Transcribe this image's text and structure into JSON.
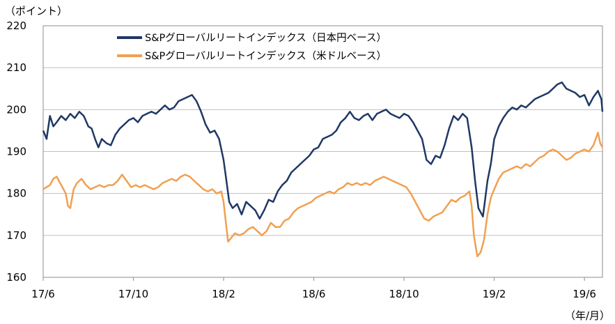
{
  "chart_data": {
    "type": "line",
    "y_unit_label": "（ポイント）",
    "x_unit_label": "（年/月）",
    "ylim": [
      160,
      220
    ],
    "y_ticks": [
      160,
      170,
      180,
      190,
      200,
      210,
      220
    ],
    "x_range": [
      0,
      24.8
    ],
    "x_ticks": [
      {
        "x": 0,
        "label": "17/6"
      },
      {
        "x": 4,
        "label": "17/10"
      },
      {
        "x": 8,
        "label": "18/2"
      },
      {
        "x": 12,
        "label": "18/6"
      },
      {
        "x": 16,
        "label": "18/10"
      },
      {
        "x": 20,
        "label": "19/2"
      },
      {
        "x": 24,
        "label": "19/6"
      }
    ],
    "grid": true,
    "legend_position": "top-center",
    "series": [
      {
        "name": "S&Pグローバルリートインデックス（日本円ベース）",
        "color": "#1f3864",
        "points": [
          [
            0,
            195
          ],
          [
            0.15,
            193
          ],
          [
            0.3,
            198.5
          ],
          [
            0.45,
            196
          ],
          [
            0.6,
            197
          ],
          [
            0.8,
            198.5
          ],
          [
            1.0,
            197.5
          ],
          [
            1.2,
            199
          ],
          [
            1.4,
            198
          ],
          [
            1.6,
            199.5
          ],
          [
            1.8,
            198.5
          ],
          [
            2.0,
            196
          ],
          [
            2.15,
            195.5
          ],
          [
            2.3,
            193
          ],
          [
            2.45,
            191
          ],
          [
            2.6,
            193
          ],
          [
            2.8,
            192
          ],
          [
            3.0,
            191.5
          ],
          [
            3.2,
            194
          ],
          [
            3.4,
            195.5
          ],
          [
            3.6,
            196.5
          ],
          [
            3.8,
            197.5
          ],
          [
            4.0,
            198
          ],
          [
            4.2,
            197
          ],
          [
            4.4,
            198.5
          ],
          [
            4.6,
            199
          ],
          [
            4.8,
            199.5
          ],
          [
            5.0,
            199
          ],
          [
            5.2,
            200
          ],
          [
            5.4,
            201
          ],
          [
            5.6,
            200
          ],
          [
            5.8,
            200.5
          ],
          [
            6.0,
            202
          ],
          [
            6.2,
            202.5
          ],
          [
            6.4,
            203
          ],
          [
            6.6,
            203.5
          ],
          [
            6.8,
            202
          ],
          [
            7.0,
            199.5
          ],
          [
            7.2,
            196.5
          ],
          [
            7.4,
            194.5
          ],
          [
            7.6,
            195
          ],
          [
            7.8,
            193
          ],
          [
            8.0,
            188
          ],
          [
            8.1,
            184
          ],
          [
            8.25,
            178
          ],
          [
            8.4,
            176.5
          ],
          [
            8.6,
            177.5
          ],
          [
            8.8,
            175
          ],
          [
            9.0,
            178
          ],
          [
            9.2,
            177
          ],
          [
            9.4,
            176
          ],
          [
            9.6,
            174
          ],
          [
            9.8,
            176
          ],
          [
            10.0,
            178.5
          ],
          [
            10.2,
            178
          ],
          [
            10.4,
            180.5
          ],
          [
            10.6,
            182
          ],
          [
            10.8,
            183
          ],
          [
            11.0,
            185
          ],
          [
            11.2,
            186
          ],
          [
            11.4,
            187
          ],
          [
            11.6,
            188
          ],
          [
            11.8,
            189
          ],
          [
            12.0,
            190.5
          ],
          [
            12.2,
            191
          ],
          [
            12.4,
            193
          ],
          [
            12.6,
            193.5
          ],
          [
            12.8,
            194
          ],
          [
            13.0,
            195
          ],
          [
            13.2,
            197
          ],
          [
            13.4,
            198
          ],
          [
            13.6,
            199.5
          ],
          [
            13.8,
            198
          ],
          [
            14.0,
            197.5
          ],
          [
            14.2,
            198.5
          ],
          [
            14.4,
            199
          ],
          [
            14.6,
            197.5
          ],
          [
            14.8,
            199
          ],
          [
            15.0,
            199.5
          ],
          [
            15.2,
            200
          ],
          [
            15.4,
            199
          ],
          [
            15.6,
            198.5
          ],
          [
            15.8,
            198
          ],
          [
            16.0,
            199
          ],
          [
            16.2,
            198.5
          ],
          [
            16.4,
            197
          ],
          [
            16.6,
            195
          ],
          [
            16.8,
            193
          ],
          [
            17.0,
            188
          ],
          [
            17.2,
            187
          ],
          [
            17.4,
            189
          ],
          [
            17.6,
            188.5
          ],
          [
            17.8,
            191.5
          ],
          [
            18.0,
            195.5
          ],
          [
            18.2,
            198.5
          ],
          [
            18.4,
            197.5
          ],
          [
            18.6,
            199
          ],
          [
            18.8,
            198
          ],
          [
            19.0,
            191
          ],
          [
            19.15,
            183
          ],
          [
            19.3,
            176.5
          ],
          [
            19.5,
            174.5
          ],
          [
            19.7,
            183
          ],
          [
            19.85,
            187
          ],
          [
            20.0,
            193
          ],
          [
            20.2,
            196
          ],
          [
            20.4,
            198
          ],
          [
            20.6,
            199.5
          ],
          [
            20.8,
            200.5
          ],
          [
            21.0,
            200
          ],
          [
            21.2,
            201
          ],
          [
            21.4,
            200.5
          ],
          [
            21.6,
            201.5
          ],
          [
            21.8,
            202.5
          ],
          [
            22.0,
            203
          ],
          [
            22.2,
            203.5
          ],
          [
            22.4,
            204
          ],
          [
            22.6,
            205
          ],
          [
            22.8,
            206
          ],
          [
            23.0,
            206.5
          ],
          [
            23.2,
            205
          ],
          [
            23.4,
            204.5
          ],
          [
            23.6,
            204
          ],
          [
            23.8,
            203
          ],
          [
            24.0,
            203.5
          ],
          [
            24.2,
            201
          ],
          [
            24.4,
            203
          ],
          [
            24.6,
            204.5
          ],
          [
            24.75,
            202.5
          ],
          [
            24.8,
            199.5
          ]
        ]
      },
      {
        "name": "S&Pグローバルリートインデックス（米ドルベース）",
        "color": "#f0a050",
        "points": [
          [
            0,
            181
          ],
          [
            0.15,
            181.5
          ],
          [
            0.3,
            182
          ],
          [
            0.45,
            183.5
          ],
          [
            0.6,
            184
          ],
          [
            0.8,
            182
          ],
          [
            1.0,
            180
          ],
          [
            1.1,
            177
          ],
          [
            1.2,
            176.5
          ],
          [
            1.35,
            181
          ],
          [
            1.5,
            182.5
          ],
          [
            1.7,
            183.5
          ],
          [
            1.9,
            182
          ],
          [
            2.1,
            181
          ],
          [
            2.3,
            181.5
          ],
          [
            2.5,
            182
          ],
          [
            2.7,
            181.5
          ],
          [
            2.9,
            182
          ],
          [
            3.1,
            182
          ],
          [
            3.3,
            183
          ],
          [
            3.5,
            184.5
          ],
          [
            3.7,
            183
          ],
          [
            3.9,
            181.5
          ],
          [
            4.1,
            182
          ],
          [
            4.3,
            181.5
          ],
          [
            4.5,
            182
          ],
          [
            4.7,
            181.5
          ],
          [
            4.9,
            181
          ],
          [
            5.1,
            181.5
          ],
          [
            5.3,
            182.5
          ],
          [
            5.5,
            183
          ],
          [
            5.7,
            183.5
          ],
          [
            5.9,
            183
          ],
          [
            6.1,
            184
          ],
          [
            6.3,
            184.5
          ],
          [
            6.5,
            184
          ],
          [
            6.7,
            183
          ],
          [
            6.9,
            182
          ],
          [
            7.1,
            181
          ],
          [
            7.3,
            180.5
          ],
          [
            7.5,
            181
          ],
          [
            7.7,
            180
          ],
          [
            7.9,
            180.5
          ],
          [
            8.0,
            178
          ],
          [
            8.1,
            173
          ],
          [
            8.2,
            168.5
          ],
          [
            8.35,
            169.5
          ],
          [
            8.5,
            170.5
          ],
          [
            8.7,
            170
          ],
          [
            8.9,
            170.5
          ],
          [
            9.1,
            171.5
          ],
          [
            9.3,
            172
          ],
          [
            9.5,
            171
          ],
          [
            9.7,
            170
          ],
          [
            9.9,
            171
          ],
          [
            10.1,
            173
          ],
          [
            10.3,
            172
          ],
          [
            10.5,
            172
          ],
          [
            10.7,
            173.5
          ],
          [
            10.9,
            174
          ],
          [
            11.1,
            175.5
          ],
          [
            11.3,
            176.5
          ],
          [
            11.5,
            177
          ],
          [
            11.7,
            177.5
          ],
          [
            11.9,
            178
          ],
          [
            12.1,
            179
          ],
          [
            12.3,
            179.5
          ],
          [
            12.5,
            180
          ],
          [
            12.7,
            180.5
          ],
          [
            12.9,
            180
          ],
          [
            13.1,
            181
          ],
          [
            13.3,
            181.5
          ],
          [
            13.5,
            182.5
          ],
          [
            13.7,
            182
          ],
          [
            13.9,
            182.5
          ],
          [
            14.1,
            182
          ],
          [
            14.3,
            182.5
          ],
          [
            14.5,
            182
          ],
          [
            14.7,
            183
          ],
          [
            14.9,
            183.5
          ],
          [
            15.1,
            184
          ],
          [
            15.3,
            183.5
          ],
          [
            15.5,
            183
          ],
          [
            15.7,
            182.5
          ],
          [
            15.9,
            182
          ],
          [
            16.1,
            181.5
          ],
          [
            16.3,
            180
          ],
          [
            16.5,
            178
          ],
          [
            16.7,
            176
          ],
          [
            16.9,
            174
          ],
          [
            17.1,
            173.5
          ],
          [
            17.3,
            174.5
          ],
          [
            17.5,
            175
          ],
          [
            17.7,
            175.5
          ],
          [
            17.9,
            177
          ],
          [
            18.1,
            178.5
          ],
          [
            18.3,
            178
          ],
          [
            18.5,
            179
          ],
          [
            18.7,
            179.5
          ],
          [
            18.9,
            180.5
          ],
          [
            19.0,
            177
          ],
          [
            19.1,
            170
          ],
          [
            19.25,
            165
          ],
          [
            19.4,
            166
          ],
          [
            19.55,
            169
          ],
          [
            19.7,
            175
          ],
          [
            19.85,
            179
          ],
          [
            20.0,
            181
          ],
          [
            20.2,
            183.5
          ],
          [
            20.4,
            185
          ],
          [
            20.6,
            185.5
          ],
          [
            20.8,
            186
          ],
          [
            21.0,
            186.5
          ],
          [
            21.2,
            186
          ],
          [
            21.4,
            187
          ],
          [
            21.6,
            186.5
          ],
          [
            21.8,
            187.5
          ],
          [
            22.0,
            188.5
          ],
          [
            22.2,
            189
          ],
          [
            22.4,
            190
          ],
          [
            22.6,
            190.5
          ],
          [
            22.8,
            190
          ],
          [
            23.0,
            189
          ],
          [
            23.2,
            188
          ],
          [
            23.4,
            188.5
          ],
          [
            23.6,
            189.5
          ],
          [
            23.8,
            190
          ],
          [
            24.0,
            190.5
          ],
          [
            24.2,
            190
          ],
          [
            24.4,
            191.5
          ],
          [
            24.6,
            194.5
          ],
          [
            24.7,
            192
          ],
          [
            24.8,
            191
          ]
        ]
      }
    ]
  }
}
